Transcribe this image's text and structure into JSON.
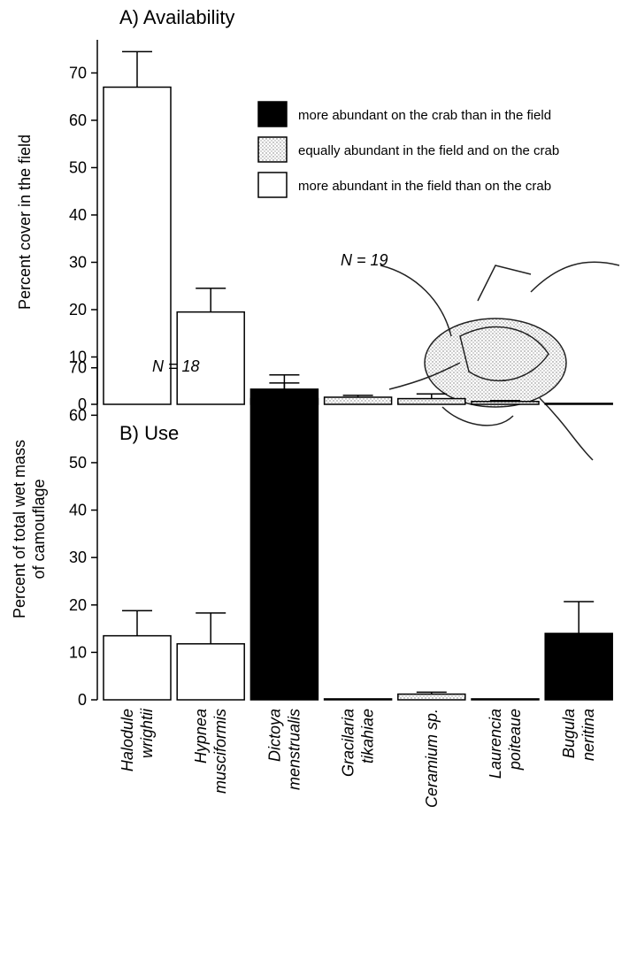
{
  "chart_data": [
    {
      "type": "bar",
      "title": "A) Availability",
      "ylabel": "Percent cover in the field",
      "values": [
        67,
        19.5,
        3.2,
        1.5,
        1.2,
        0.6,
        0.2
      ],
      "errors": [
        7.5,
        5,
        1.3,
        0.4,
        1,
        0.2,
        0
      ],
      "fills": [
        "#ffffff",
        "#ffffff",
        "#000000",
        "dotted",
        "dotted",
        "dotted",
        "#ffffff"
      ],
      "ylim": [
        0,
        77
      ],
      "yticks": [
        0,
        10,
        20,
        30,
        40,
        50,
        60,
        70
      ],
      "annotation": "N = 19",
      "legend": [
        {
          "label": "more abundant on the crab than in the field",
          "fill": "#000000"
        },
        {
          "label": "equally abundant in the field and on the crab",
          "fill": "dotted"
        },
        {
          "label": "more abundant in the field than on the crab",
          "fill": "#ffffff"
        }
      ]
    },
    {
      "type": "bar",
      "title": "B) Use",
      "ylabel": [
        "Percent of total wet mass",
        "of camouflage"
      ],
      "categories": [
        [
          "Halodule",
          "wrightii"
        ],
        [
          "Hypnea",
          "musciformis"
        ],
        [
          "Dictoya",
          "menstrualis"
        ],
        [
          "Gracilaria",
          "tikahiae"
        ],
        [
          "Ceramium sp."
        ],
        [
          "Laurencia",
          "poiteaue"
        ],
        [
          "Bugula",
          "neritina"
        ]
      ],
      "values": [
        13.5,
        11.8,
        63.5,
        0.2,
        1.2,
        0.2,
        14
      ],
      "errors": [
        5.3,
        6.5,
        5,
        0,
        0.4,
        0,
        6.7
      ],
      "fills": [
        "#ffffff",
        "#ffffff",
        "#000000",
        "#ffffff",
        "dotted",
        "#ffffff",
        "#000000"
      ],
      "ylim": [
        0,
        72
      ],
      "yticks": [
        0,
        10,
        20,
        30,
        40,
        50,
        60,
        70
      ],
      "annotation": "N = 18"
    }
  ]
}
